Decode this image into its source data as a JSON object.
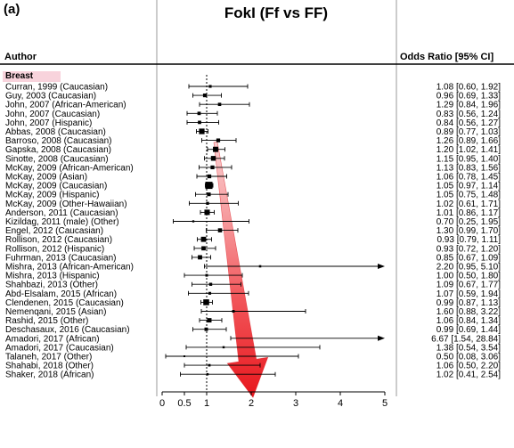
{
  "chart_data": {
    "type": "forest",
    "panel_label": "(a)",
    "title": "FokI (Ff vs FF)",
    "column_headers": {
      "author": "Author",
      "or": "Odds Ratio [95% CI]"
    },
    "subgroup": "Breast",
    "xlim": [
      0,
      5
    ],
    "x_ticks": [
      0,
      0.5,
      1,
      2,
      3,
      4,
      5
    ],
    "x_tick_labels": [
      "0",
      "0.5",
      "1",
      "2",
      "3",
      "4",
      "5"
    ],
    "reference_line": 1,
    "studies": [
      {
        "author": "Curran, 1999 (Caucasian)",
        "or": 1.08,
        "lo": 0.6,
        "hi": 1.92,
        "or_text": "1.08 [0.60,  1.92]"
      },
      {
        "author": "Guy, 2003 (Caucasian)",
        "or": 0.96,
        "lo": 0.69,
        "hi": 1.33,
        "or_text": "0.96 [0.69,  1.33]"
      },
      {
        "author": "John, 2007 (African-American)",
        "or": 1.29,
        "lo": 0.84,
        "hi": 1.96,
        "or_text": "1.29 [0.84,  1.96]"
      },
      {
        "author": "John, 2007 (Caucasian)",
        "or": 0.83,
        "lo": 0.56,
        "hi": 1.24,
        "or_text": "0.83 [0.56,  1.24]"
      },
      {
        "author": "John, 2007 (Hispanic)",
        "or": 0.84,
        "lo": 0.56,
        "hi": 1.27,
        "or_text": "0.84 [0.56,  1.27]"
      },
      {
        "author": "Abbas, 2008 (Caucasian)",
        "or": 0.89,
        "lo": 0.77,
        "hi": 1.03,
        "or_text": "0.89 [0.77,  1.03]"
      },
      {
        "author": "Barroso, 2008 (Caucasian)",
        "or": 1.26,
        "lo": 0.89,
        "hi": 1.66,
        "or_text": "1.26 [0.89,  1.66]"
      },
      {
        "author": "Gapska, 2008 (Caucasian)",
        "or": 1.2,
        "lo": 1.02,
        "hi": 1.41,
        "or_text": "1.20 [1.02,  1.41]"
      },
      {
        "author": "Sinotte, 2008 (Caucasian)",
        "or": 1.15,
        "lo": 0.95,
        "hi": 1.4,
        "or_text": "1.15 [0.95,  1.40]"
      },
      {
        "author": "McKay, 2009 (African-American)",
        "or": 1.13,
        "lo": 0.83,
        "hi": 1.56,
        "or_text": "1.13 [0.83,  1.56]"
      },
      {
        "author": "McKay, 2009 (Asian)",
        "or": 1.06,
        "lo": 0.78,
        "hi": 1.45,
        "or_text": "1.06 [0.78,  1.45]"
      },
      {
        "author": "McKay, 2009 (Caucasian)",
        "or": 1.05,
        "lo": 0.97,
        "hi": 1.14,
        "or_text": "1.05 [0.97,  1.14]"
      },
      {
        "author": "McKay, 2009 (Hispanic)",
        "or": 1.05,
        "lo": 0.75,
        "hi": 1.48,
        "or_text": "1.05 [0.75,  1.48]"
      },
      {
        "author": "McKay, 2009 (Other-Hawaiian)",
        "or": 1.02,
        "lo": 0.61,
        "hi": 1.71,
        "or_text": "1.02 [0.61,  1.71]"
      },
      {
        "author": "Anderson, 2011 (Caucasian)",
        "or": 1.01,
        "lo": 0.86,
        "hi": 1.17,
        "or_text": "1.01 [0.86,  1.17]"
      },
      {
        "author": "Kizildag, 2011 (male) (Other)",
        "or": 0.7,
        "lo": 0.25,
        "hi": 1.95,
        "or_text": "0.70 [0.25,  1.95]"
      },
      {
        "author": "Engel, 2012 (Caucasian)",
        "or": 1.3,
        "lo": 0.99,
        "hi": 1.7,
        "or_text": "1.30 [0.99,  1.70]"
      },
      {
        "author": "Rollison, 2012 (Caucasian)",
        "or": 0.93,
        "lo": 0.79,
        "hi": 1.11,
        "or_text": "0.93 [0.79,  1.11]"
      },
      {
        "author": "Rollison, 2012 (Hispanic)",
        "or": 0.93,
        "lo": 0.72,
        "hi": 1.2,
        "or_text": "0.93 [0.72,  1.20]"
      },
      {
        "author": "Fuhrman, 2013 (Caucasian)",
        "or": 0.85,
        "lo": 0.67,
        "hi": 1.09,
        "or_text": "0.85 [0.67,  1.09]"
      },
      {
        "author": "Mishra, 2013 (African-American)",
        "or": 2.2,
        "lo": 0.95,
        "hi": 5.1,
        "or_text": "2.20 [0.95,  5.10]"
      },
      {
        "author": "Mishra, 2013 (Hispanic)",
        "or": 1.0,
        "lo": 0.5,
        "hi": 1.8,
        "or_text": "1.00 [0.50,  1.80]"
      },
      {
        "author": "Shahbazi, 2013 (Other)",
        "or": 1.09,
        "lo": 0.67,
        "hi": 1.77,
        "or_text": "1.09 [0.67,  1.77]"
      },
      {
        "author": "Abd-Elsalam, 2015 (African)",
        "or": 1.07,
        "lo": 0.59,
        "hi": 1.94,
        "or_text": "1.07 [0.59,  1.94]"
      },
      {
        "author": "Clendenen, 2015 (Caucasian)",
        "or": 0.99,
        "lo": 0.87,
        "hi": 1.13,
        "or_text": "0.99 [0.87,  1.13]"
      },
      {
        "author": "Nemenqani, 2015 (Asian)",
        "or": 1.6,
        "lo": 0.88,
        "hi": 3.22,
        "or_text": "1.60 [0.88,  3.22]"
      },
      {
        "author": "Rashid, 2015 (Other)",
        "or": 1.06,
        "lo": 0.84,
        "hi": 1.34,
        "or_text": "1.06 [0.84,  1.34]"
      },
      {
        "author": "Deschasaux, 2016 (Caucasian)",
        "or": 0.99,
        "lo": 0.69,
        "hi": 1.44,
        "or_text": "0.99 [0.69,  1.44]"
      },
      {
        "author": "Amadori, 2017 (African)",
        "or": 6.67,
        "lo": 1.54,
        "hi": 28.84,
        "or_text": "6.67 [1.54, 28.84]"
      },
      {
        "author": "Amadori, 2017 (Caucasian)",
        "or": 1.38,
        "lo": 0.54,
        "hi": 3.54,
        "or_text": "1.38 [0.54,  3.54]"
      },
      {
        "author": "Talaneh, 2017 (Other)",
        "or": 0.5,
        "lo": 0.08,
        "hi": 3.06,
        "or_text": "0.50 [0.08,  3.06]"
      },
      {
        "author": "Shahabi, 2018 (Other)",
        "or": 1.06,
        "lo": 0.5,
        "hi": 2.2,
        "or_text": "1.06 [0.50,  2.20]"
      },
      {
        "author": "Shaker, 2018 (African)",
        "or": 1.02,
        "lo": 0.41,
        "hi": 2.54,
        "or_text": "1.02 [0.41,  2.54]"
      }
    ],
    "annotation": {
      "type": "arrow",
      "from_study": "Barroso, 2008 (Caucasian)",
      "to_study": "Shaker, 2018 (African)",
      "color": "#e8161c"
    },
    "colors": {
      "subgroup_highlight": "#f8d3dc",
      "arrow": "#e8161c",
      "marks": "#000000"
    }
  }
}
